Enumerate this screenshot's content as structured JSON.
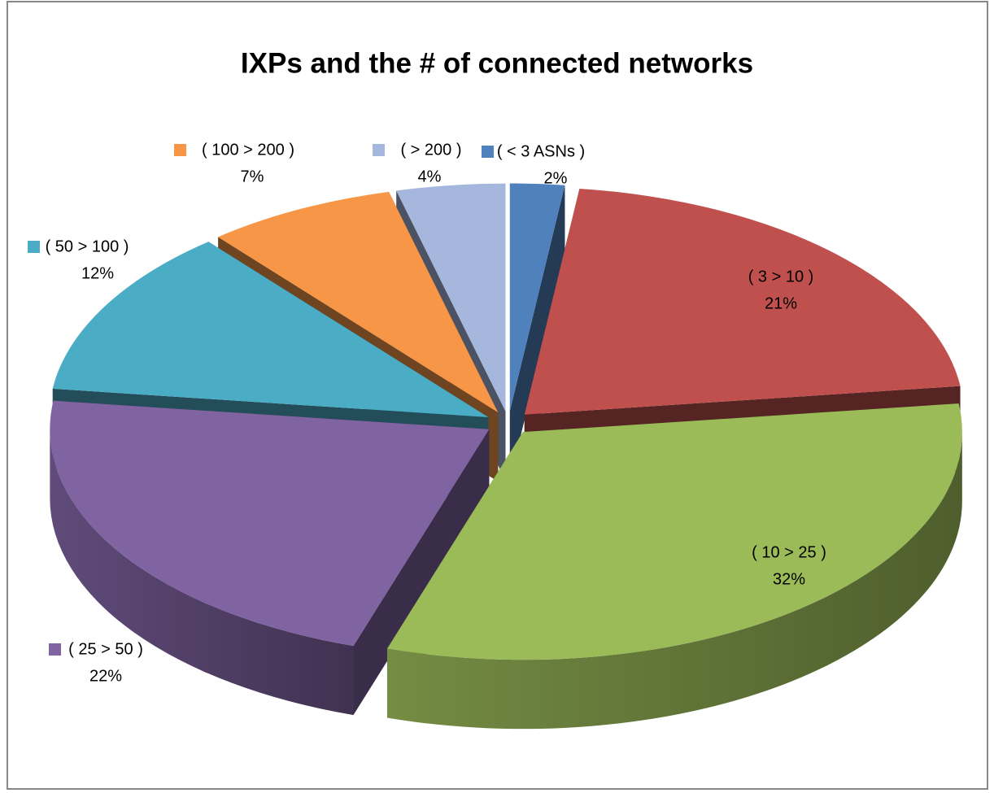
{
  "chart_data": {
    "type": "pie3d",
    "title": "IXPs and the # of connected networks",
    "categories": [
      "( < 3 ASNs )",
      "( 3 > 10 )",
      "( 10 > 25 )",
      "( 25 > 50 )",
      "( 50 > 100 )",
      "( 100 > 200 )",
      "( > 200 )"
    ],
    "values": [
      2,
      21,
      32,
      22,
      12,
      7,
      4
    ],
    "value_labels": [
      "2%",
      "21%",
      "32%",
      "22%",
      "12%",
      "7%",
      "4%"
    ],
    "colors": [
      "#4f81bd",
      "#c0504d",
      "#9bbb59",
      "#8064a2",
      "#4bacc6",
      "#f79646",
      "#a5b7dc"
    ]
  }
}
